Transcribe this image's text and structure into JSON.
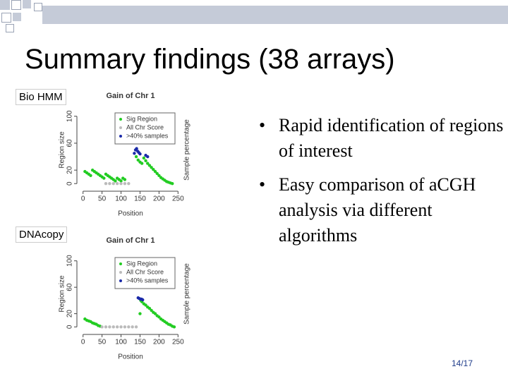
{
  "title": "Summary findings (38 arrays)",
  "tags": [
    "Bio HMM",
    "DNAcopy"
  ],
  "bullets": [
    "Rapid identification of regions of interest",
    "Easy comparison of aCGH analysis via different algorithms"
  ],
  "page_number": "14/17",
  "chart_data": [
    {
      "type": "scatter",
      "title": "Gain of Chr 1",
      "x_label": "Position",
      "y_label": "Region size",
      "y2_label": "Sample percentage",
      "xlim": [
        -5,
        255
      ],
      "xticks": [
        0,
        50,
        100,
        150,
        200,
        250
      ],
      "ylim": [
        -5,
        105
      ],
      "yticks": [
        0,
        20,
        60,
        100
      ],
      "series": [
        {
          "name": "Sig Region",
          "color": "#22cc22",
          "x": [
            5,
            10,
            15,
            20,
            25,
            30,
            35,
            40,
            45,
            50,
            55,
            60,
            65,
            70,
            75,
            80,
            85,
            90,
            95,
            100,
            105,
            110,
            140,
            145,
            150,
            155,
            160,
            165,
            170,
            175,
            180,
            185,
            190,
            195,
            200,
            205,
            210,
            215,
            220,
            225,
            230,
            235
          ],
          "values": [
            18,
            16,
            14,
            12,
            20,
            18,
            16,
            14,
            12,
            10,
            8,
            14,
            12,
            10,
            8,
            6,
            4,
            8,
            6,
            4,
            8,
            6,
            40,
            35,
            32,
            30,
            38,
            34,
            30,
            27,
            24,
            21,
            18,
            15,
            12,
            9,
            7,
            5,
            3,
            2,
            1,
            0
          ]
        },
        {
          "name": "All Chr Score",
          "color": "#bbbbbb",
          "x": [
            60,
            70,
            80,
            90,
            100,
            110,
            120
          ],
          "values": [
            0,
            0,
            0,
            0,
            0,
            0,
            0
          ]
        },
        {
          "name": ">40% samples",
          "color": "#1a2aa8",
          "x": [
            135,
            138,
            141,
            144,
            147,
            150,
            165,
            170
          ],
          "values": [
            45,
            50,
            52,
            48,
            46,
            44,
            42,
            40
          ]
        }
      ]
    },
    {
      "type": "scatter",
      "title": "Gain of Chr 1",
      "x_label": "Position",
      "y_label": "Region size",
      "y2_label": "Sample percentage",
      "xlim": [
        -5,
        255
      ],
      "xticks": [
        0,
        50,
        100,
        150,
        200,
        250
      ],
      "ylim": [
        -5,
        105
      ],
      "yticks": [
        0,
        20,
        60,
        100
      ],
      "series": [
        {
          "name": "Sig Region",
          "color": "#22cc22",
          "x": [
            5,
            10,
            15,
            20,
            25,
            30,
            35,
            40,
            45,
            150,
            152,
            155,
            160,
            165,
            170,
            175,
            180,
            185,
            190,
            195,
            200,
            205,
            210,
            215,
            220,
            225,
            230,
            235,
            240
          ],
          "values": [
            12,
            10,
            9,
            8,
            6,
            5,
            4,
            2,
            1,
            20,
            40,
            38,
            35,
            33,
            30,
            28,
            25,
            22,
            20,
            17,
            15,
            12,
            10,
            8,
            6,
            4,
            3,
            1,
            0
          ]
        },
        {
          "name": "All Chr Score",
          "color": "#bbbbbb",
          "x": [
            50,
            60,
            70,
            80,
            90,
            100,
            110,
            120,
            130,
            140
          ],
          "values": [
            0,
            0,
            0,
            0,
            0,
            0,
            0,
            0,
            0,
            0
          ]
        },
        {
          "name": ">40% samples",
          "color": "#1a2aa8",
          "x": [
            145,
            148,
            151,
            154,
            157
          ],
          "values": [
            44,
            43,
            42,
            42,
            41
          ]
        }
      ]
    }
  ]
}
